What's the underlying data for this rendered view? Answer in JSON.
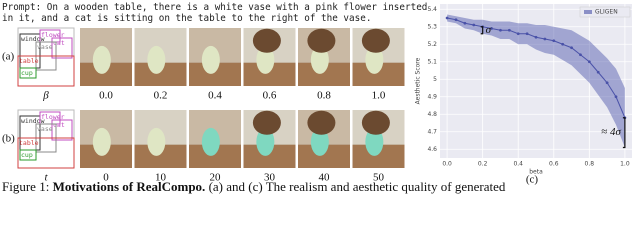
{
  "prompt": "Prompt: On a wooden table, there is a white vase with a pink flower inserted in it, and a cat is sitting on the table to the right of the vase.",
  "rows": [
    {
      "tag": "(a)",
      "symbol": "β",
      "steps": [
        "0.0",
        "0.2",
        "0.4",
        "0.6",
        "0.8",
        "1.0"
      ],
      "layout": [
        "window",
        "flower",
        "cat",
        "vase",
        "cup",
        "table"
      ]
    },
    {
      "tag": "(b)",
      "symbol": "t",
      "steps": [
        0,
        10,
        20,
        30,
        40,
        50
      ],
      "layout": [
        "window",
        "flower",
        "cat",
        "vase",
        "cup",
        "table"
      ]
    }
  ],
  "caption": {
    "label": "Figure 1: ",
    "title": "Motivations of RealCompo.",
    "text": " (a) and (c) The realism and aesthetic quality of generated"
  },
  "chart_data": {
    "type": "line",
    "x_label": "beta",
    "y_label": "Aesthetic Score",
    "panel": "(c)",
    "x": [
      0,
      0.05,
      0.1,
      0.15,
      0.2,
      0.25,
      0.3,
      0.35,
      0.4,
      0.45,
      0.5,
      0.55,
      0.6,
      0.65,
      0.7,
      0.75,
      0.8,
      0.85,
      0.9,
      0.95,
      1.0
    ],
    "series": [
      {
        "name": "GLIGEN",
        "color": "#4a52a8",
        "values": [
          5.35,
          5.34,
          5.32,
          5.31,
          5.3,
          5.29,
          5.28,
          5.28,
          5.26,
          5.26,
          5.24,
          5.23,
          5.22,
          5.2,
          5.18,
          5.14,
          5.1,
          5.04,
          4.98,
          4.9,
          4.78
        ],
        "errors": [
          0.02,
          0.02,
          0.03,
          0.03,
          0.04,
          0.04,
          0.05,
          0.05,
          0.06,
          0.06,
          0.07,
          0.08,
          0.08,
          0.09,
          0.1,
          0.11,
          0.12,
          0.13,
          0.14,
          0.16,
          0.17
        ]
      }
    ],
    "annotations": [
      "σ",
      "≈ 4σ"
    ],
    "xlim": [
      -0.04,
      1.04
    ],
    "ylim": [
      4.55,
      5.43
    ],
    "xticks": [
      {
        "value": 0,
        "label": "0.0"
      },
      {
        "value": 0.2,
        "label": "0.2"
      },
      {
        "value": 0.4,
        "label": "0.4"
      },
      {
        "value": 0.6,
        "label": "0.6"
      },
      {
        "value": 0.8,
        "label": "0.8"
      },
      {
        "value": 1.0,
        "label": "1.0"
      }
    ],
    "yticks": [
      4.6,
      4.7,
      4.8,
      4.9,
      5.0,
      5.1,
      5.2,
      5.3,
      5.4
    ],
    "grid": true,
    "legend": "upper right"
  }
}
